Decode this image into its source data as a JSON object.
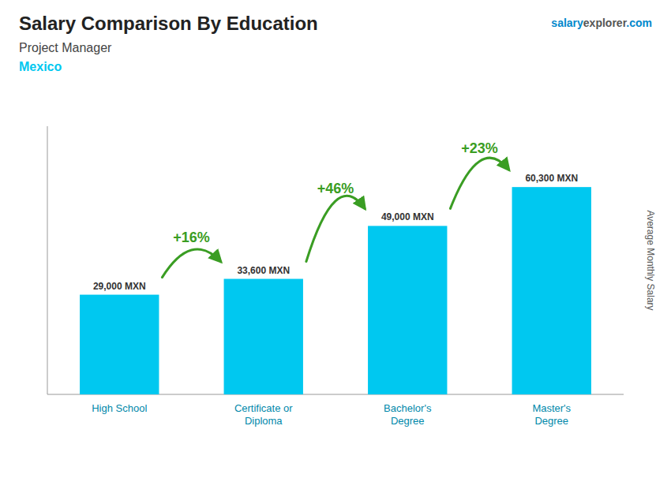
{
  "chart_data": {
    "type": "bar",
    "title": "Salary Comparison By Education",
    "subtitle": [
      "Project Manager",
      "Mexico"
    ],
    "watermark": [
      "salary",
      "explorer",
      ".com"
    ],
    "ylabel": "Average Monthly Salary",
    "categories": [
      "High School",
      "Certificate or\nDiploma",
      "Bachelor's\nDegree",
      "Master's\nDegree"
    ],
    "values": [
      29000,
      33600,
      49000,
      60300
    ],
    "value_labels": [
      "29,000 MXN",
      "33,600 MXN",
      "49,000 MXN",
      "60,300 MXN"
    ],
    "data_labels": true,
    "annotations": [
      "+16%",
      "+46%",
      "+23%"
    ],
    "color": "#00c8f0",
    "ylim": [
      0,
      78000
    ],
    "tick_labels": "x",
    "grid": false
  }
}
